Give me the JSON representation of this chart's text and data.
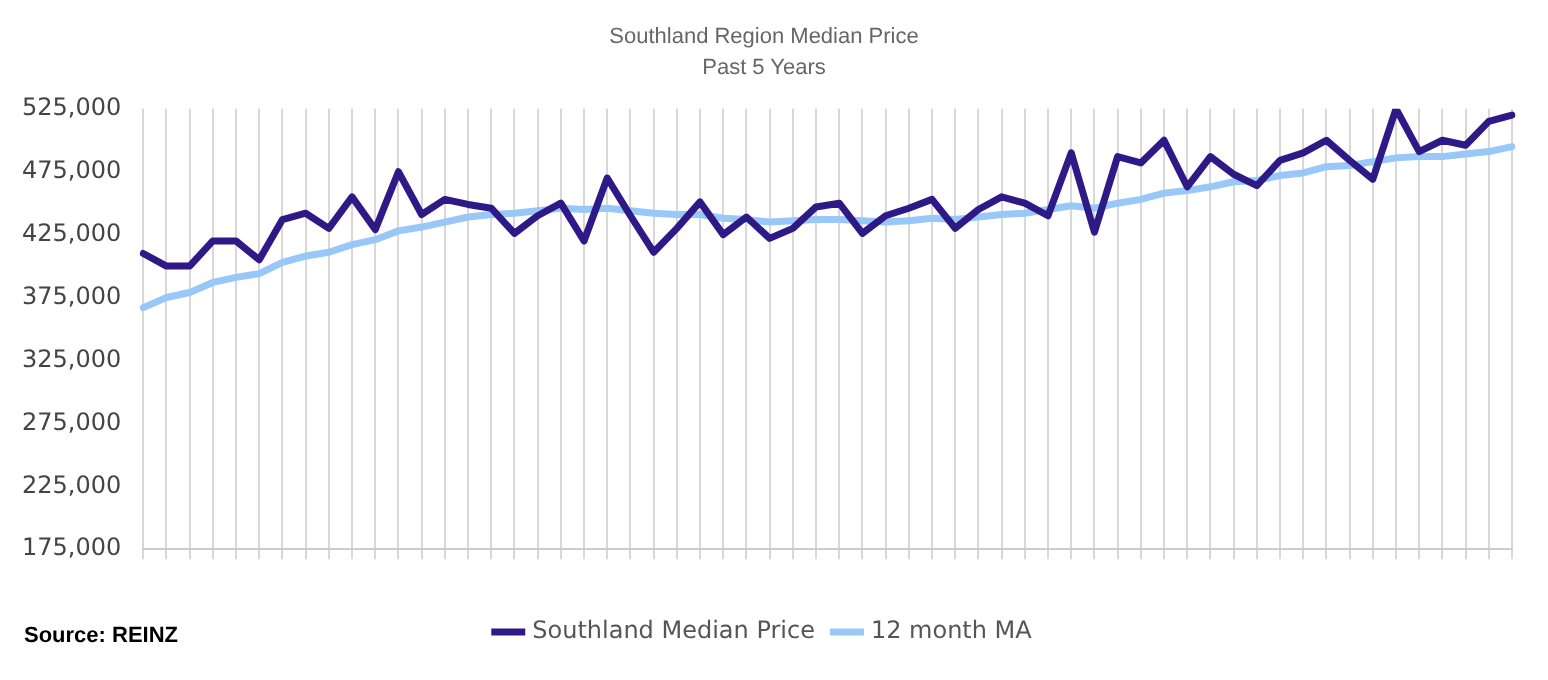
{
  "chart_data": {
    "type": "line",
    "title": "Southland Region Median Price",
    "subtitle": "Past 5 Years",
    "annotations": [
      "Source: REINZ"
    ],
    "categories": [
      null,
      null,
      null,
      null,
      null,
      null,
      null,
      null,
      null,
      null,
      null,
      null,
      null,
      null,
      null,
      null,
      null,
      null,
      null,
      null,
      null,
      null,
      null,
      null,
      null,
      null,
      null,
      null,
      null,
      null,
      null,
      null,
      null,
      null,
      null,
      null,
      null,
      null,
      null,
      null,
      null,
      null,
      null,
      null,
      null,
      null,
      null,
      null,
      null,
      null,
      null,
      null,
      null,
      null,
      null,
      null,
      null,
      null,
      null,
      null
    ],
    "series": [
      {
        "name": "Southland Median Price",
        "color": "#2e1a87",
        "values": [
          410000,
          400000,
          400000,
          420000,
          420000,
          405000,
          437000,
          442000,
          430000,
          455000,
          429000,
          475000,
          441000,
          453000,
          449000,
          446000,
          426000,
          440000,
          450000,
          420000,
          470000,
          440000,
          411000,
          430000,
          451000,
          425000,
          439000,
          422000,
          430000,
          447000,
          450000,
          426000,
          440000,
          446000,
          453000,
          430000,
          445000,
          455000,
          450000,
          440000,
          490000,
          427000,
          487000,
          482000,
          500000,
          463000,
          487000,
          473000,
          464000,
          484000,
          490000,
          500000,
          484000,
          469000,
          525000,
          491000,
          500000,
          496000,
          515000,
          520000
        ]
      },
      {
        "name": "12 month MA",
        "color": "#99c8f8",
        "values": [
          367000,
          375000,
          379000,
          387000,
          391000,
          394000,
          403000,
          408000,
          411000,
          417000,
          421000,
          428000,
          431000,
          435000,
          439000,
          441000,
          442000,
          444000,
          446000,
          445000,
          446000,
          444000,
          442000,
          441000,
          441000,
          438000,
          437000,
          435000,
          436000,
          437000,
          437000,
          436000,
          435000,
          436000,
          438000,
          437000,
          439000,
          441000,
          442000,
          445000,
          448000,
          446000,
          450000,
          453000,
          458000,
          460000,
          463000,
          467000,
          468000,
          472000,
          474000,
          479000,
          480000,
          483000,
          486000,
          487000,
          487000,
          489000,
          491000,
          495000
        ]
      }
    ],
    "ylim": [
      175000,
      525000
    ],
    "yticks": [
      {
        "value": 175000,
        "label": "175,000"
      },
      {
        "value": 225000,
        "label": "225,000"
      },
      {
        "value": 275000,
        "label": "275,000"
      },
      {
        "value": 325000,
        "label": "325,000"
      },
      {
        "value": 375000,
        "label": "375,000"
      },
      {
        "value": 425000,
        "label": "425,000"
      },
      {
        "value": 475000,
        "label": "475,000"
      },
      {
        "value": 525000,
        "label": "525,000"
      }
    ],
    "grid": "x",
    "legend": "bottom",
    "marker": "none",
    "line_style": "solid"
  }
}
